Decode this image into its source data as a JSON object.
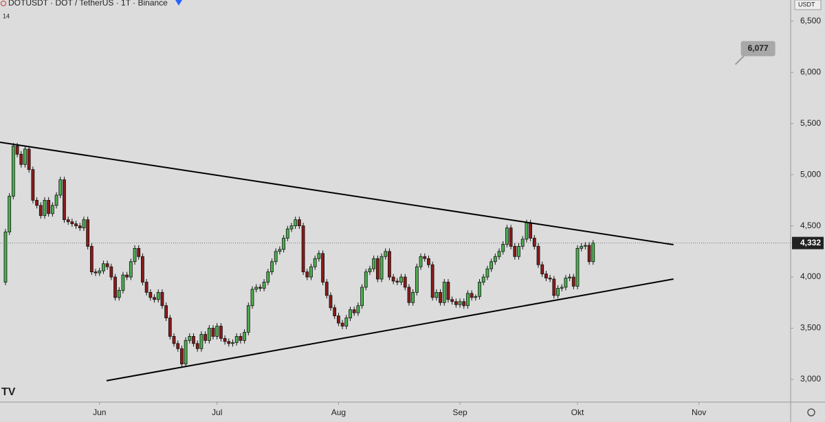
{
  "chart_data": {
    "type": "candlestick",
    "title": "DOTUSDT · DOT / TetherUS · 1T · Binance",
    "subtitle": "14",
    "currency": "USDT",
    "up_color": "#4caf50",
    "down_color": "#8b1a1a",
    "xlim": [
      -1.4,
      200.4
    ],
    "xticks": [
      {
        "value": 24,
        "label": "Jun"
      },
      {
        "value": 54,
        "label": "Jul"
      },
      {
        "value": 85,
        "label": "Aug"
      },
      {
        "value": 116,
        "label": "Sep"
      },
      {
        "value": 146,
        "label": "Okt"
      },
      {
        "value": 177,
        "label": "Nov"
      }
    ],
    "ylim": [
      2778,
      6707
    ],
    "yticks": [
      {
        "value": 3000,
        "label": "3,000"
      },
      {
        "value": 3500,
        "label": "3,500"
      },
      {
        "value": 4000,
        "label": "4,000"
      },
      {
        "value": 4500,
        "label": "4,500"
      },
      {
        "value": 5000,
        "label": "5,000"
      },
      {
        "value": 5500,
        "label": "5,500"
      },
      {
        "value": 6000,
        "label": "6,000"
      },
      {
        "value": 6500,
        "label": "6,500"
      }
    ],
    "last_price": {
      "value": 4332,
      "label": "4,332"
    },
    "annotation": {
      "value": 6077,
      "label": "6,077",
      "x": 186.3
    },
    "trendlines": [
      {
        "x": [
          -1.4,
          170.5
        ],
        "y": [
          5317,
          4316
        ]
      },
      {
        "x": [
          25.8,
          170.5
        ],
        "y": [
          2987,
          3980
        ]
      }
    ],
    "candles": [
      [
        3950,
        4470,
        3920,
        4440
      ],
      [
        4440,
        4820,
        4410,
        4790
      ],
      [
        4790,
        5310,
        4760,
        5280
      ],
      [
        5280,
        5310,
        5170,
        5200
      ],
      [
        5200,
        5230,
        5070,
        5100
      ],
      [
        5100,
        5280,
        5070,
        5250
      ],
      [
        5250,
        5280,
        5020,
        5050
      ],
      [
        5050,
        5080,
        4720,
        4750
      ],
      [
        4750,
        4780,
        4670,
        4700
      ],
      [
        4700,
        4730,
        4570,
        4600
      ],
      [
        4600,
        4780,
        4570,
        4750
      ],
      [
        4750,
        4780,
        4590,
        4620
      ],
      [
        4620,
        4730,
        4590,
        4700
      ],
      [
        4700,
        4830,
        4670,
        4800
      ],
      [
        4800,
        4980,
        4770,
        4950
      ],
      [
        4950,
        4980,
        4530,
        4560
      ],
      [
        4560,
        4590,
        4510,
        4540
      ],
      [
        4540,
        4570,
        4490,
        4520
      ],
      [
        4520,
        4550,
        4470,
        4500
      ],
      [
        4500,
        4530,
        4450,
        4480
      ],
      [
        4480,
        4590,
        4450,
        4560
      ],
      [
        4560,
        4590,
        4270,
        4300
      ],
      [
        4300,
        4330,
        4020,
        4050
      ],
      [
        4050,
        4080,
        4010,
        4040
      ],
      [
        4040,
        4090,
        4010,
        4060
      ],
      [
        4060,
        4160,
        4030,
        4130
      ],
      [
        4130,
        4160,
        4070,
        4100
      ],
      [
        4100,
        4130,
        3970,
        4000
      ],
      [
        4000,
        4030,
        3770,
        3800
      ],
      [
        3800,
        3900,
        3770,
        3870
      ],
      [
        3870,
        4050,
        3840,
        4020
      ],
      [
        4020,
        4050,
        3970,
        4000
      ],
      [
        4000,
        4180,
        3970,
        4150
      ],
      [
        4150,
        4310,
        4120,
        4280
      ],
      [
        4280,
        4310,
        4170,
        4200
      ],
      [
        4200,
        4230,
        3920,
        3950
      ],
      [
        3950,
        3980,
        3820,
        3850
      ],
      [
        3850,
        3880,
        3770,
        3800
      ],
      [
        3800,
        3830,
        3750,
        3780
      ],
      [
        3780,
        3880,
        3750,
        3850
      ],
      [
        3850,
        3880,
        3690,
        3720
      ],
      [
        3720,
        3750,
        3570,
        3600
      ],
      [
        3600,
        3630,
        3390,
        3420
      ],
      [
        3420,
        3450,
        3320,
        3350
      ],
      [
        3350,
        3380,
        3270,
        3300
      ],
      [
        3300,
        3330,
        3120,
        3150
      ],
      [
        3150,
        3410,
        3120,
        3380
      ],
      [
        3380,
        3450,
        3350,
        3420
      ],
      [
        3420,
        3450,
        3320,
        3350
      ],
      [
        3350,
        3380,
        3270,
        3300
      ],
      [
        3300,
        3470,
        3270,
        3440
      ],
      [
        3440,
        3470,
        3350,
        3380
      ],
      [
        3380,
        3530,
        3350,
        3500
      ],
      [
        3500,
        3530,
        3390,
        3420
      ],
      [
        3420,
        3550,
        3390,
        3520
      ],
      [
        3520,
        3550,
        3370,
        3400
      ],
      [
        3400,
        3430,
        3340,
        3370
      ],
      [
        3370,
        3400,
        3320,
        3350
      ],
      [
        3350,
        3390,
        3320,
        3360
      ],
      [
        3360,
        3450,
        3330,
        3420
      ],
      [
        3420,
        3450,
        3350,
        3380
      ],
      [
        3380,
        3490,
        3350,
        3460
      ],
      [
        3460,
        3750,
        3430,
        3720
      ],
      [
        3720,
        3910,
        3690,
        3880
      ],
      [
        3880,
        3930,
        3850,
        3900
      ],
      [
        3900,
        3930,
        3860,
        3890
      ],
      [
        3890,
        3980,
        3860,
        3950
      ],
      [
        3950,
        4080,
        3920,
        4050
      ],
      [
        4050,
        4180,
        4020,
        4150
      ],
      [
        4150,
        4280,
        4120,
        4250
      ],
      [
        4250,
        4300,
        4220,
        4270
      ],
      [
        4270,
        4410,
        4240,
        4380
      ],
      [
        4380,
        4500,
        4350,
        4470
      ],
      [
        4470,
        4530,
        4440,
        4500
      ],
      [
        4500,
        4590,
        4470,
        4560
      ],
      [
        4560,
        4590,
        4470,
        4500
      ],
      [
        4500,
        4530,
        4020,
        4050
      ],
      [
        4050,
        4080,
        3970,
        4000
      ],
      [
        4000,
        4130,
        3970,
        4100
      ],
      [
        4100,
        4210,
        4070,
        4180
      ],
      [
        4180,
        4260,
        4150,
        4230
      ],
      [
        4230,
        4260,
        3920,
        3950
      ],
      [
        3950,
        3980,
        3790,
        3820
      ],
      [
        3820,
        3850,
        3670,
        3700
      ],
      [
        3700,
        3730,
        3590,
        3620
      ],
      [
        3620,
        3650,
        3520,
        3550
      ],
      [
        3550,
        3580,
        3490,
        3520
      ],
      [
        3520,
        3630,
        3490,
        3600
      ],
      [
        3600,
        3710,
        3570,
        3680
      ],
      [
        3680,
        3710,
        3620,
        3650
      ],
      [
        3650,
        3750,
        3620,
        3720
      ],
      [
        3720,
        3930,
        3690,
        3900
      ],
      [
        3900,
        4080,
        3870,
        4050
      ],
      [
        4050,
        4110,
        4020,
        4080
      ],
      [
        4080,
        4210,
        4050,
        4180
      ],
      [
        4180,
        4210,
        3950,
        3980
      ],
      [
        3980,
        4230,
        3950,
        4200
      ],
      [
        4200,
        4280,
        4170,
        4250
      ],
      [
        4250,
        4280,
        3970,
        4000
      ],
      [
        4000,
        4030,
        3930,
        3960
      ],
      [
        3960,
        3990,
        3920,
        3950
      ],
      [
        3950,
        4030,
        3920,
        4000
      ],
      [
        4000,
        4030,
        3870,
        3900
      ],
      [
        3900,
        3930,
        3720,
        3750
      ],
      [
        3750,
        3880,
        3720,
        3850
      ],
      [
        3850,
        4130,
        3820,
        4100
      ],
      [
        4100,
        4230,
        4070,
        4200
      ],
      [
        4200,
        4230,
        4150,
        4180
      ],
      [
        4180,
        4210,
        4090,
        4120
      ],
      [
        4120,
        4150,
        3770,
        3800
      ],
      [
        3800,
        3880,
        3770,
        3850
      ],
      [
        3850,
        3880,
        3720,
        3750
      ],
      [
        3750,
        3980,
        3720,
        3950
      ],
      [
        3950,
        3980,
        3750,
        3780
      ],
      [
        3780,
        3810,
        3730,
        3760
      ],
      [
        3760,
        3790,
        3700,
        3730
      ],
      [
        3730,
        3790,
        3700,
        3760
      ],
      [
        3760,
        3790,
        3690,
        3720
      ],
      [
        3720,
        3870,
        3690,
        3840
      ],
      [
        3840,
        3870,
        3770,
        3800
      ],
      [
        3800,
        3830,
        3770,
        3810
      ],
      [
        3810,
        3980,
        3780,
        3950
      ],
      [
        3950,
        4030,
        3920,
        4000
      ],
      [
        4000,
        4110,
        3970,
        4080
      ],
      [
        4080,
        4180,
        4050,
        4150
      ],
      [
        4150,
        4230,
        4120,
        4200
      ],
      [
        4200,
        4280,
        4170,
        4250
      ],
      [
        4250,
        4350,
        4220,
        4320
      ],
      [
        4320,
        4510,
        4290,
        4480
      ],
      [
        4480,
        4510,
        4270,
        4300
      ],
      [
        4300,
        4330,
        4170,
        4200
      ],
      [
        4200,
        4330,
        4170,
        4300
      ],
      [
        4300,
        4400,
        4270,
        4370
      ],
      [
        4370,
        4560,
        4340,
        4530
      ],
      [
        4530,
        4560,
        4350,
        4380
      ],
      [
        4380,
        4410,
        4270,
        4300
      ],
      [
        4300,
        4330,
        4090,
        4120
      ],
      [
        4120,
        4150,
        4000,
        4030
      ],
      [
        4030,
        4060,
        3960,
        3990
      ],
      [
        3990,
        4020,
        3950,
        3980
      ],
      [
        3980,
        4010,
        3790,
        3820
      ],
      [
        3820,
        3920,
        3790,
        3890
      ],
      [
        3890,
        3930,
        3860,
        3900
      ],
      [
        3900,
        4020,
        3870,
        3990
      ],
      [
        3990,
        4030,
        3960,
        4000
      ],
      [
        4000,
        4030,
        3880,
        3910
      ],
      [
        3910,
        4310,
        3880,
        4280
      ],
      [
        4280,
        4330,
        4250,
        4300
      ],
      [
        4300,
        4340,
        4270,
        4310
      ],
      [
        4310,
        4340,
        4120,
        4150
      ],
      [
        4150,
        4360,
        4120,
        4332
      ]
    ]
  }
}
